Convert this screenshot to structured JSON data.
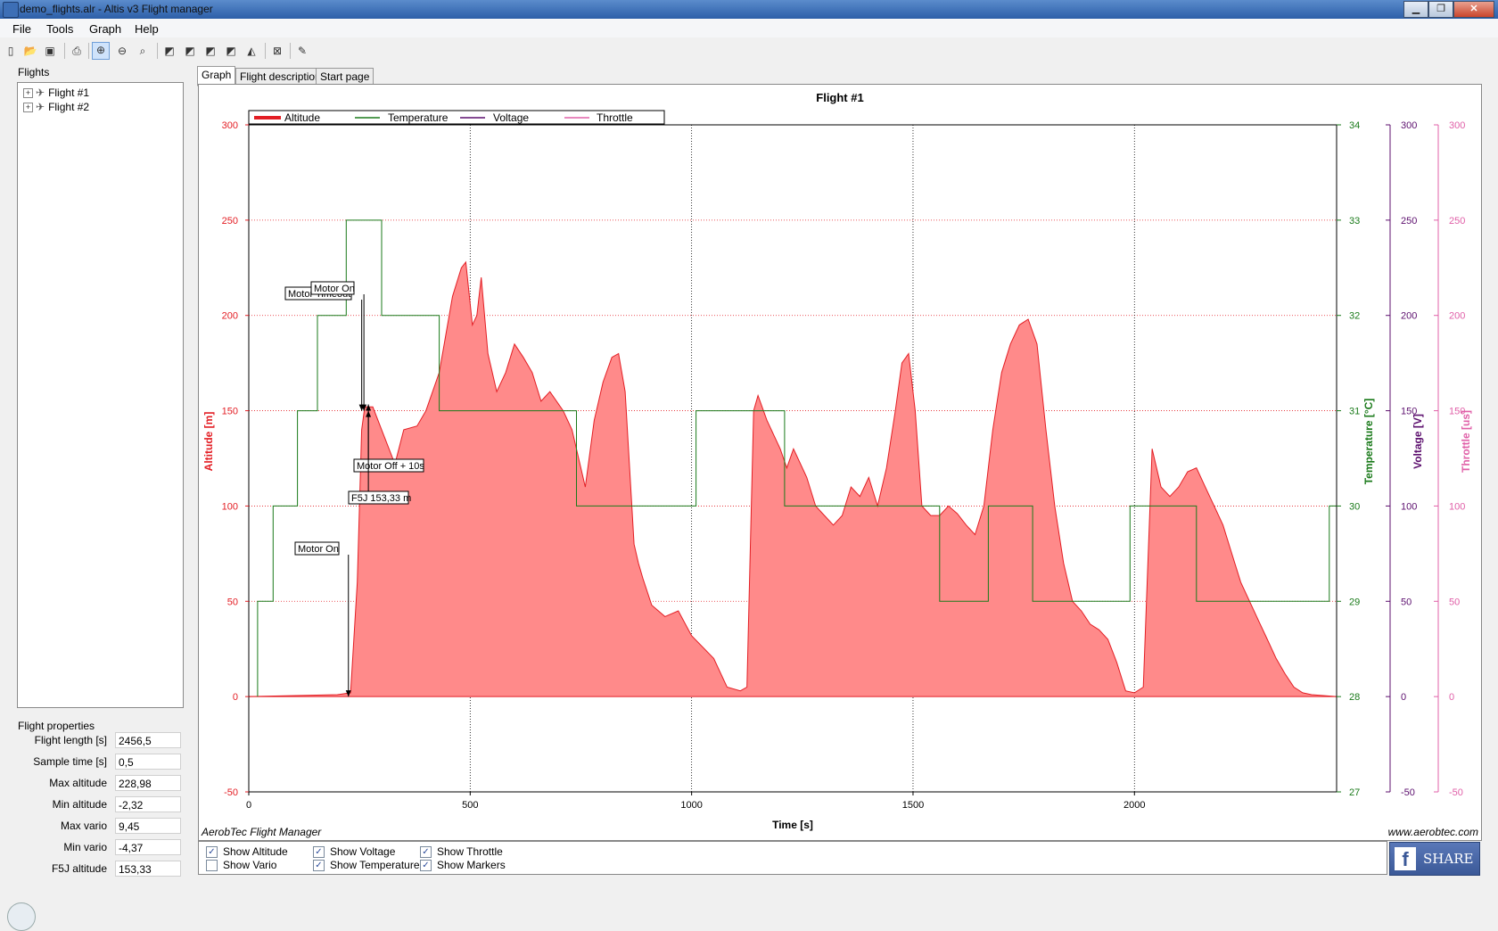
{
  "window": {
    "title": "demo_flights.alr - Altis v3 Flight manager"
  },
  "menu": [
    "File",
    "Tools",
    "Graph",
    "Help"
  ],
  "sidebar": {
    "flights_label": "Flights",
    "flights": [
      "Flight #1",
      "Flight #2"
    ],
    "properties_label": "Flight properties",
    "properties": [
      {
        "label": "Flight length [s]",
        "value": "2456,5"
      },
      {
        "label": "Sample time [s]",
        "value": "0,5"
      },
      {
        "label": "Max altitude",
        "value": "228,98"
      },
      {
        "label": "Min altitude",
        "value": "-2,32"
      },
      {
        "label": "Max vario",
        "value": "9,45"
      },
      {
        "label": "Min vario",
        "value": "-4,37"
      },
      {
        "label": "F5J altitude",
        "value": "153,33"
      }
    ]
  },
  "tabs": [
    "Graph",
    "Flight description",
    "Start page"
  ],
  "graph": {
    "footer_left": "AerobTec Flight Manager",
    "footer_right": "www.aerobtec.com"
  },
  "checkboxes": [
    {
      "label": "Show Altitude",
      "checked": true
    },
    {
      "label": "Show Vario",
      "checked": false
    },
    {
      "label": "Show Voltage",
      "checked": true
    },
    {
      "label": "Show Temperature",
      "checked": true
    },
    {
      "label": "Show Throttle",
      "checked": true
    },
    {
      "label": "Show Markers",
      "checked": true
    }
  ],
  "share_label": "SHARE",
  "colors": {
    "altitude": "#e31e24",
    "altitude_fill": "#ff8a8a",
    "temperature": "#1a7a1a",
    "voltage": "#5c0f6e",
    "throttle": "#e060a8"
  },
  "chart_data": {
    "type": "area",
    "title": "Flight #1",
    "xlabel": "Time [s]",
    "xlim": [
      0,
      2456.5
    ],
    "x_ticks": [
      "0",
      "500",
      "1000",
      "1500",
      "2000"
    ],
    "grid": true,
    "legend_position": "top-left",
    "legend": [
      "Altitude",
      "Temperature",
      "Voltage",
      "Throttle"
    ],
    "axes": {
      "altitude": {
        "label": "Altitude [m]",
        "range": [
          -50,
          300
        ],
        "ticks": [
          "-50",
          "0",
          "50",
          "100",
          "150",
          "200",
          "250",
          "300"
        ]
      },
      "temperature": {
        "label": "Temperature [°C]",
        "range": [
          27,
          34
        ],
        "ticks": [
          "27",
          "28",
          "29",
          "30",
          "31",
          "32",
          "33",
          "34"
        ]
      },
      "voltage": {
        "label": "Voltage [V]",
        "range": [
          -50,
          300
        ],
        "ticks": [
          "-50",
          "0",
          "50",
          "100",
          "150",
          "200",
          "250",
          "300"
        ]
      },
      "throttle": {
        "label": "Throttle [us]",
        "range": [
          -50,
          300
        ],
        "ticks": [
          "-50",
          "0",
          "50",
          "100",
          "150",
          "200",
          "250",
          "300"
        ]
      }
    },
    "series": [
      {
        "name": "Altitude",
        "axis": "altitude",
        "points": [
          [
            0,
            0
          ],
          [
            200,
            1
          ],
          [
            230,
            2
          ],
          [
            245,
            60
          ],
          [
            255,
            140
          ],
          [
            262,
            152
          ],
          [
            280,
            152
          ],
          [
            300,
            140
          ],
          [
            330,
            122
          ],
          [
            350,
            140
          ],
          [
            380,
            142
          ],
          [
            400,
            150
          ],
          [
            430,
            170
          ],
          [
            460,
            210
          ],
          [
            480,
            225
          ],
          [
            490,
            228
          ],
          [
            505,
            195
          ],
          [
            515,
            200
          ],
          [
            525,
            220
          ],
          [
            540,
            180
          ],
          [
            560,
            160
          ],
          [
            580,
            170
          ],
          [
            600,
            185
          ],
          [
            620,
            178
          ],
          [
            640,
            170
          ],
          [
            660,
            155
          ],
          [
            680,
            160
          ],
          [
            710,
            150
          ],
          [
            730,
            140
          ],
          [
            760,
            110
          ],
          [
            780,
            145
          ],
          [
            800,
            165
          ],
          [
            820,
            178
          ],
          [
            835,
            180
          ],
          [
            850,
            160
          ],
          [
            870,
            80
          ],
          [
            880,
            70
          ],
          [
            890,
            62
          ],
          [
            910,
            48
          ],
          [
            940,
            42
          ],
          [
            970,
            45
          ],
          [
            1000,
            32
          ],
          [
            1050,
            20
          ],
          [
            1080,
            5
          ],
          [
            1110,
            3
          ],
          [
            1125,
            5
          ],
          [
            1140,
            150
          ],
          [
            1150,
            158
          ],
          [
            1170,
            145
          ],
          [
            1200,
            130
          ],
          [
            1215,
            120
          ],
          [
            1230,
            130
          ],
          [
            1260,
            115
          ],
          [
            1280,
            100
          ],
          [
            1300,
            95
          ],
          [
            1320,
            90
          ],
          [
            1340,
            95
          ],
          [
            1360,
            110
          ],
          [
            1380,
            105
          ],
          [
            1400,
            115
          ],
          [
            1420,
            100
          ],
          [
            1440,
            120
          ],
          [
            1460,
            150
          ],
          [
            1475,
            175
          ],
          [
            1490,
            180
          ],
          [
            1505,
            150
          ],
          [
            1520,
            100
          ],
          [
            1540,
            95
          ],
          [
            1560,
            95
          ],
          [
            1580,
            100
          ],
          [
            1600,
            96
          ],
          [
            1620,
            90
          ],
          [
            1640,
            85
          ],
          [
            1660,
            100
          ],
          [
            1680,
            140
          ],
          [
            1700,
            170
          ],
          [
            1720,
            185
          ],
          [
            1740,
            195
          ],
          [
            1760,
            198
          ],
          [
            1780,
            185
          ],
          [
            1800,
            140
          ],
          [
            1820,
            100
          ],
          [
            1840,
            70
          ],
          [
            1860,
            50
          ],
          [
            1880,
            45
          ],
          [
            1900,
            38
          ],
          [
            1920,
            35
          ],
          [
            1940,
            30
          ],
          [
            1960,
            18
          ],
          [
            1980,
            3
          ],
          [
            2000,
            2
          ],
          [
            2020,
            5
          ],
          [
            2040,
            130
          ],
          [
            2060,
            110
          ],
          [
            2080,
            105
          ],
          [
            2100,
            110
          ],
          [
            2120,
            118
          ],
          [
            2140,
            120
          ],
          [
            2160,
            110
          ],
          [
            2180,
            100
          ],
          [
            2200,
            90
          ],
          [
            2220,
            75
          ],
          [
            2240,
            60
          ],
          [
            2260,
            50
          ],
          [
            2280,
            40
          ],
          [
            2300,
            30
          ],
          [
            2320,
            20
          ],
          [
            2340,
            12
          ],
          [
            2360,
            5
          ],
          [
            2380,
            2
          ],
          [
            2400,
            1
          ],
          [
            2456,
            0
          ]
        ]
      },
      {
        "name": "Temperature",
        "axis": "temperature",
        "points": [
          [
            20,
            28
          ],
          [
            20,
            29
          ],
          [
            55,
            29
          ],
          [
            55,
            30
          ],
          [
            110,
            30
          ],
          [
            110,
            31
          ],
          [
            155,
            31
          ],
          [
            155,
            32
          ],
          [
            220,
            32
          ],
          [
            220,
            33
          ],
          [
            300,
            33
          ],
          [
            300,
            32
          ],
          [
            430,
            32
          ],
          [
            430,
            31
          ],
          [
            740,
            31
          ],
          [
            740,
            30
          ],
          [
            1010,
            30
          ],
          [
            1010,
            31
          ],
          [
            1210,
            31
          ],
          [
            1210,
            30
          ],
          [
            1560,
            30
          ],
          [
            1560,
            29
          ],
          [
            1670,
            29
          ],
          [
            1670,
            30
          ],
          [
            1770,
            30
          ],
          [
            1770,
            29
          ],
          [
            1990,
            29
          ],
          [
            1990,
            30
          ],
          [
            2140,
            30
          ],
          [
            2140,
            29
          ],
          [
            2440,
            29
          ],
          [
            2440,
            30
          ],
          [
            2456,
            30
          ]
        ]
      }
    ],
    "annotations": [
      {
        "text": "Motor On",
        "x": 225,
        "y": 0
      },
      {
        "text": "Motor Timeout",
        "x": 255,
        "y": 150
      },
      {
        "text": "Motor On",
        "x": 260,
        "y": 150
      },
      {
        "text": "Motor Off + 10s",
        "x": 262,
        "y": 150
      },
      {
        "text": "F5J 153,33 m",
        "x": 262,
        "y": 153.33
      }
    ]
  }
}
